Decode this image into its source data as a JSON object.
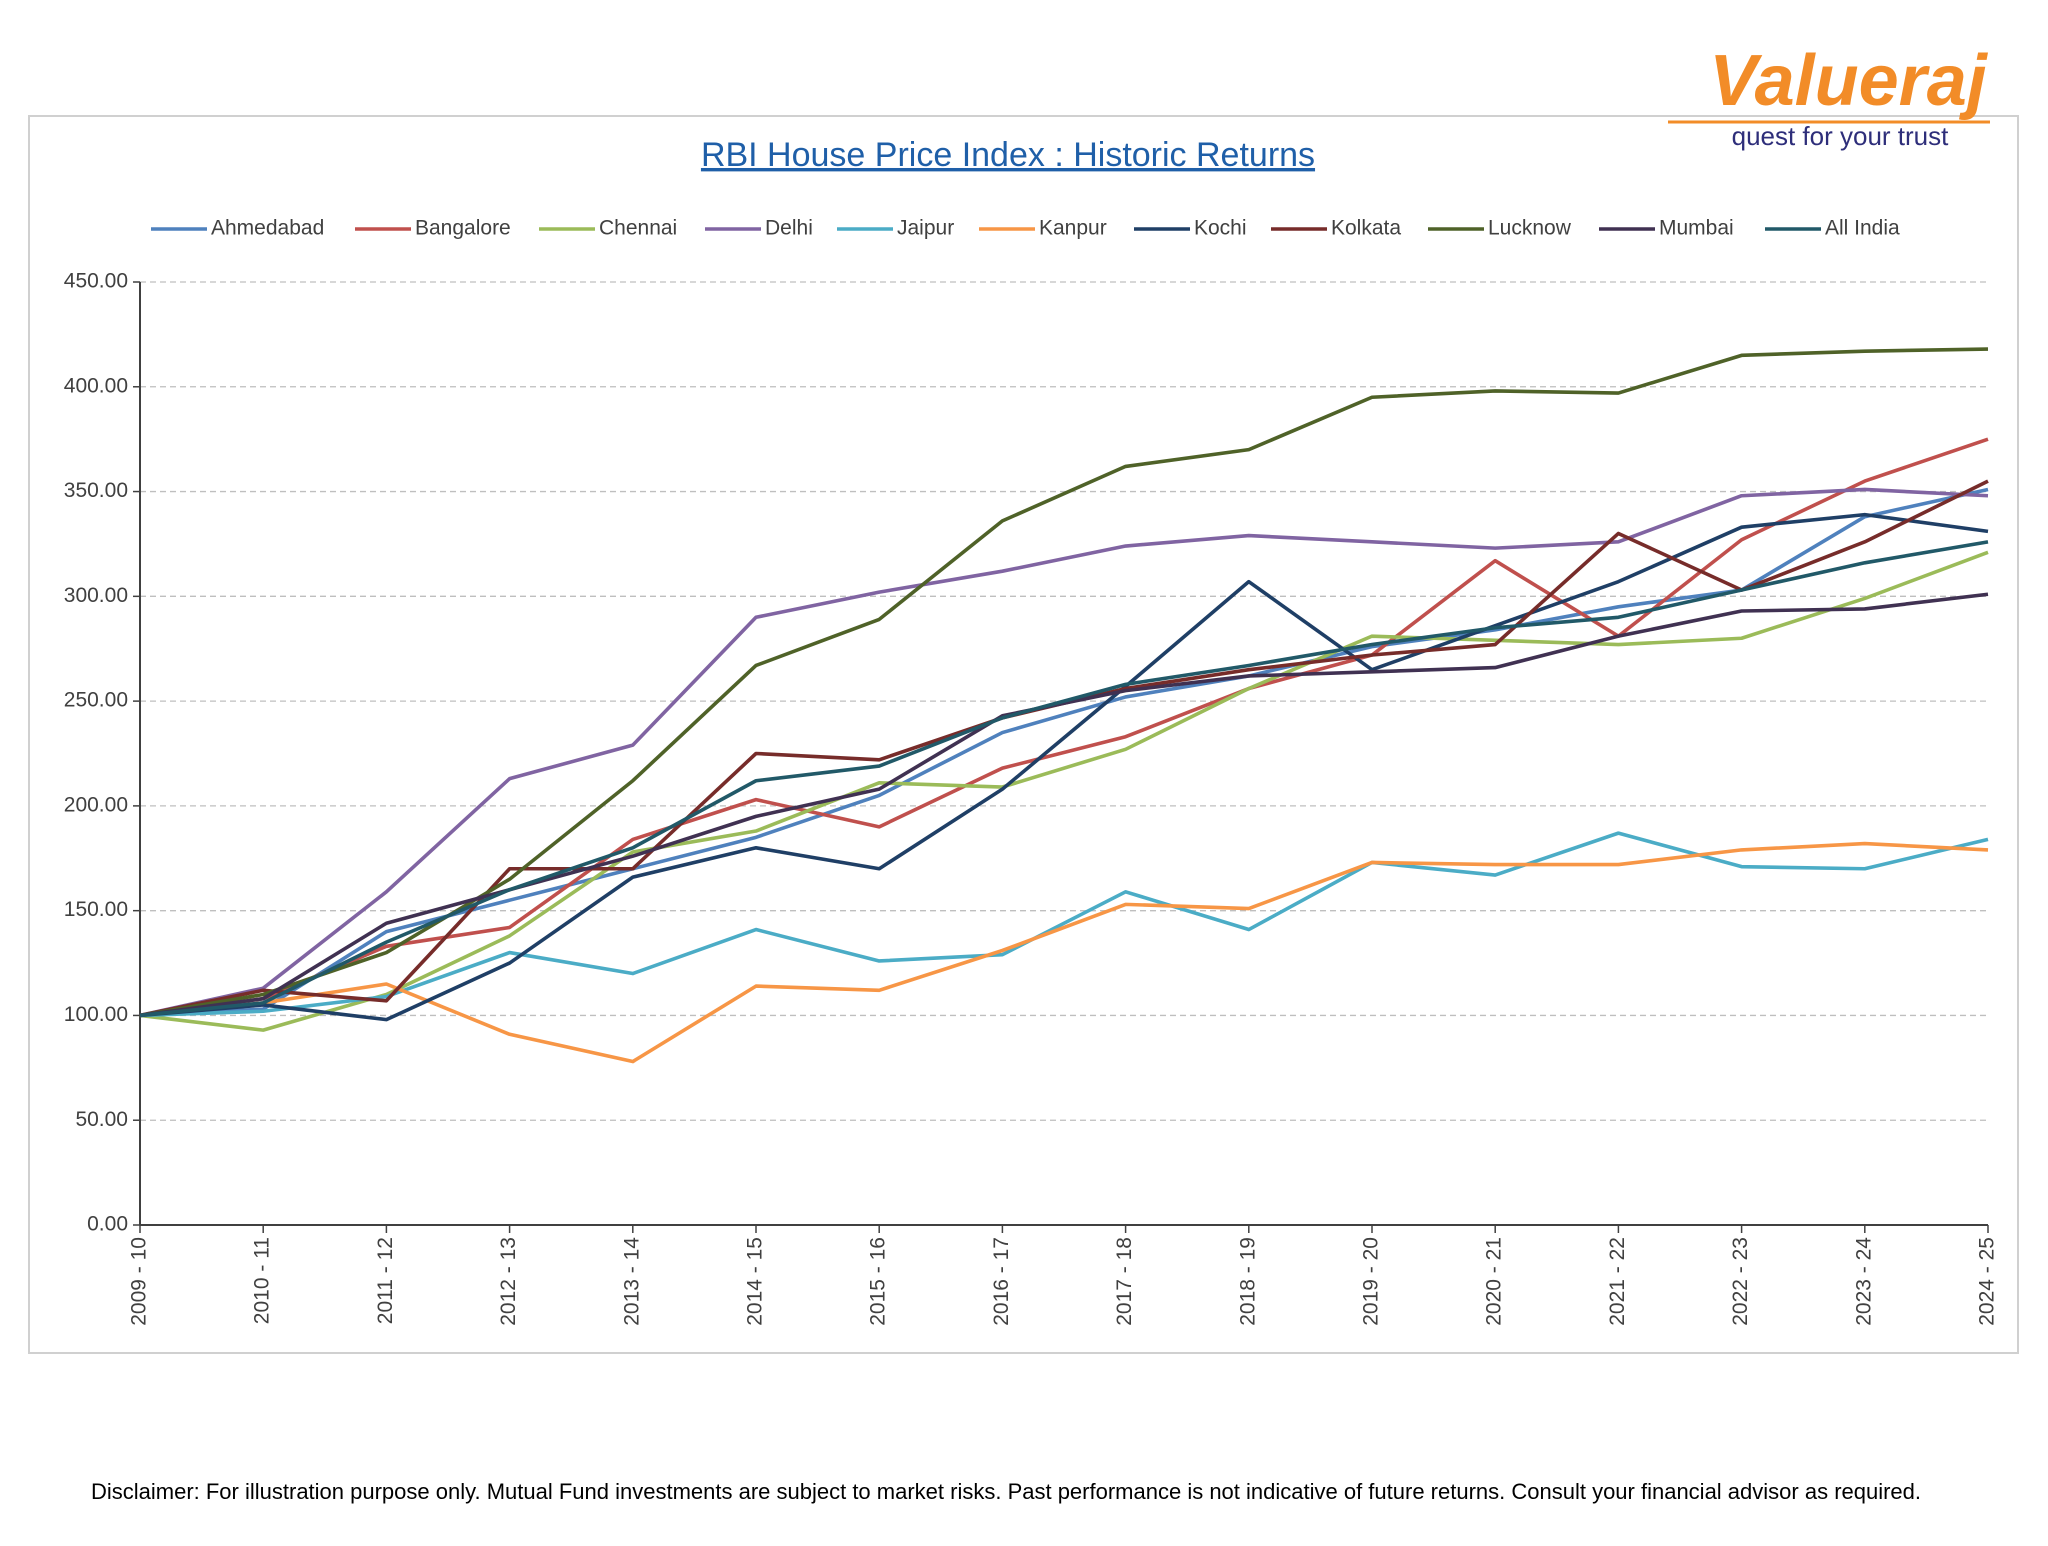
{
  "logo": {
    "name": "Valueraj",
    "tagline": "quest for your trust"
  },
  "chart_data": {
    "type": "line",
    "title": "RBI House Price Index : Historic Returns",
    "categories": [
      "2009 - 10",
      "2010 - 11",
      "2011 - 12",
      "2012 - 13",
      "2013 - 14",
      "2014 - 15",
      "2015 - 16",
      "2016 - 17",
      "2017 - 18",
      "2018 - 19",
      "2019 - 20",
      "2020 - 21",
      "2021 - 22",
      "2022 - 23",
      "2023 - 24",
      "2024 - 25"
    ],
    "series": [
      {
        "name": "Ahmedabad",
        "color": "#4f81bd",
        "values": [
          100,
          103,
          140,
          155,
          170,
          185,
          205,
          235,
          252,
          262,
          276,
          284,
          295,
          303,
          338,
          351
        ]
      },
      {
        "name": "Bangalore",
        "color": "#c0504d",
        "values": [
          100,
          108,
          133,
          142,
          184,
          203,
          190,
          218,
          233,
          256,
          272,
          317,
          281,
          327,
          355,
          375
        ]
      },
      {
        "name": "Chennai",
        "color": "#9bbb59",
        "values": [
          100,
          93,
          110,
          138,
          178,
          188,
          211,
          209,
          227,
          256,
          281,
          279,
          277,
          280,
          299,
          321
        ]
      },
      {
        "name": "Delhi",
        "color": "#8064a2",
        "values": [
          100,
          113,
          159,
          213,
          229,
          290,
          302,
          312,
          324,
          329,
          326,
          323,
          326,
          348,
          351,
          348
        ]
      },
      {
        "name": "Jaipur",
        "color": "#4bacc6",
        "values": [
          100,
          102,
          109,
          130,
          120,
          141,
          126,
          129,
          159,
          141,
          173,
          167,
          187,
          171,
          170,
          184
        ]
      },
      {
        "name": "Kanpur",
        "color": "#f79646",
        "values": [
          100,
          106,
          115,
          91,
          78,
          114,
          112,
          131,
          153,
          151,
          173,
          172,
          172,
          179,
          182,
          179
        ]
      },
      {
        "name": "Kochi",
        "color": "#1f3f66",
        "values": [
          100,
          105,
          98,
          125,
          166,
          180,
          170,
          208,
          257,
          307,
          265,
          286,
          307,
          333,
          339,
          331
        ]
      },
      {
        "name": "Kolkata",
        "color": "#772c2a",
        "values": [
          100,
          112,
          107,
          170,
          170,
          225,
          222,
          242,
          256,
          265,
          272,
          277,
          330,
          303,
          326,
          355
        ]
      },
      {
        "name": "Lucknow",
        "color": "#4f6228",
        "values": [
          100,
          110,
          130,
          165,
          212,
          267,
          289,
          336,
          362,
          370,
          395,
          398,
          397,
          415,
          417,
          418
        ]
      },
      {
        "name": "Mumbai",
        "color": "#403152",
        "values": [
          100,
          108,
          144,
          160,
          176,
          195,
          208,
          243,
          255,
          262,
          264,
          266,
          281,
          293,
          294,
          301
        ]
      },
      {
        "name": "All India",
        "color": "#215968",
        "values": [
          100,
          106,
          135,
          160,
          180,
          212,
          219,
          242,
          258,
          267,
          277,
          285,
          290,
          303,
          316,
          326
        ]
      }
    ],
    "ylim": [
      0,
      450
    ],
    "yticks": [
      {
        "value": 0,
        "label": "0.00"
      },
      {
        "value": 50,
        "label": "50.00"
      },
      {
        "value": 100,
        "label": "100.00"
      },
      {
        "value": 150,
        "label": "150.00"
      },
      {
        "value": 200,
        "label": "200.00"
      },
      {
        "value": 250,
        "label": "250.00"
      },
      {
        "value": 300,
        "label": "300.00"
      },
      {
        "value": 350,
        "label": "350.00"
      },
      {
        "value": 400,
        "label": "400.00"
      },
      {
        "value": 450,
        "label": "450.00"
      }
    ],
    "grid": true,
    "legend": "top"
  },
  "disclaimer": "Disclaimer: For illustration purpose only. Mutual Fund investments are subject to market risks. Past performance is not indicative of future returns. Consult your financial advisor as required."
}
